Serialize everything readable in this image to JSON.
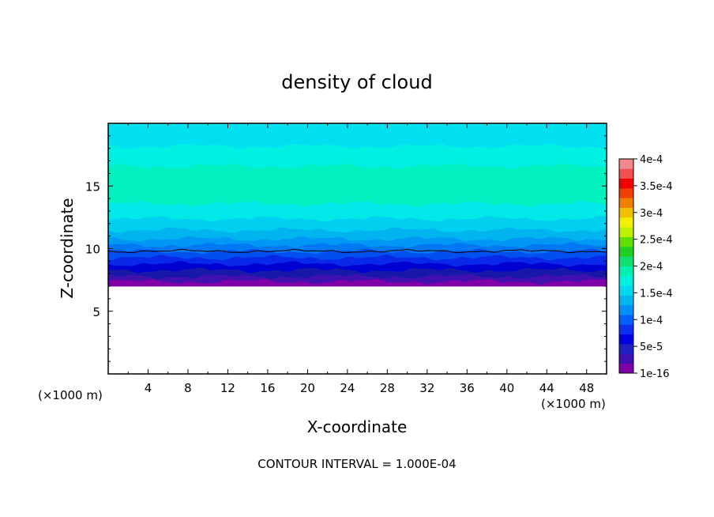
{
  "chart_data": {
    "type": "heatmap",
    "title": "density of cloud",
    "xlabel": "X-coordinate",
    "ylabel": "Z-coordinate",
    "x_unit_left": "(×1000 m)",
    "x_unit_right": "(×1000 m)",
    "footer": "CONTOUR INTERVAL = 1.000E-04",
    "xlim": [
      0,
      50
    ],
    "ylim": [
      0,
      20
    ],
    "xticks": [
      4,
      8,
      12,
      16,
      20,
      24,
      28,
      32,
      36,
      40,
      44,
      48
    ],
    "yticks": [
      5,
      10,
      15
    ],
    "cloud_base_z": 7.0,
    "contour_line_z": 9.8,
    "colorbar": {
      "labels": [
        {
          "value": 1e-16,
          "text": "1e-16"
        },
        {
          "value": 5e-05,
          "text": "5e-5"
        },
        {
          "value": 0.0001,
          "text": "1e-4"
        },
        {
          "value": 0.00015,
          "text": "1.5e-4"
        },
        {
          "value": 0.0002,
          "text": "2e-4"
        },
        {
          "value": 0.00025,
          "text": "2.5e-4"
        },
        {
          "value": 0.0003,
          "text": "3e-4"
        },
        {
          "value": 0.00035,
          "text": "3.5e-4"
        },
        {
          "value": 0.0004,
          "text": "4e-4"
        }
      ],
      "colors": [
        "#8000a8",
        "#4010b0",
        "#2020c0",
        "#0000e0",
        "#0a30f0",
        "#0060f8",
        "#0090f8",
        "#00b8f0",
        "#00d8f0",
        "#00f0e0",
        "#00f0b0",
        "#10e070",
        "#20d020",
        "#60e000",
        "#c0f000",
        "#f0f000",
        "#f0c000",
        "#f08000",
        "#f04000",
        "#f00000",
        "#f05050",
        "#f08a8a"
      ]
    },
    "layers": [
      {
        "z0": 7.0,
        "z1": 7.4,
        "color": "#8000a8"
      },
      {
        "z0": 7.4,
        "z1": 7.8,
        "color": "#4010b0"
      },
      {
        "z0": 7.8,
        "z1": 8.3,
        "color": "#1818a8"
      },
      {
        "z0": 8.3,
        "z1": 8.8,
        "color": "#0000d0"
      },
      {
        "z0": 8.8,
        "z1": 9.3,
        "color": "#0a28e8"
      },
      {
        "z0": 9.3,
        "z1": 9.8,
        "color": "#0050f0"
      },
      {
        "z0": 9.8,
        "z1": 10.3,
        "color": "#0078f4"
      },
      {
        "z0": 10.3,
        "z1": 10.8,
        "color": "#0098f4"
      },
      {
        "z0": 10.8,
        "z1": 11.5,
        "color": "#00b4f0"
      },
      {
        "z0": 11.5,
        "z1": 12.4,
        "color": "#00cff0"
      },
      {
        "z0": 12.4,
        "z1": 13.6,
        "color": "#00e8e8"
      },
      {
        "z0": 13.6,
        "z1": 16.6,
        "color": "#00f0c0"
      },
      {
        "z0": 16.6,
        "z1": 18.2,
        "color": "#00f0e4"
      },
      {
        "z0": 18.2,
        "z1": 20.0,
        "color": "#00e0f0"
      }
    ]
  }
}
